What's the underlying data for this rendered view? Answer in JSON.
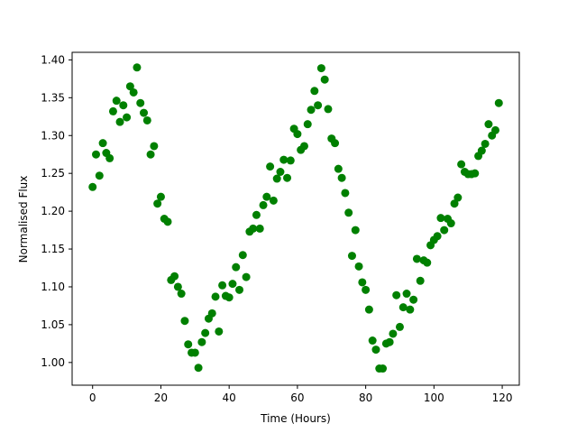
{
  "chart_data": {
    "type": "scatter",
    "title": "",
    "xlabel": "Time (Hours)",
    "ylabel": "Normalised Flux",
    "xlim": [
      -6,
      125
    ],
    "ylim": [
      0.97,
      1.41
    ],
    "xticks": [
      0,
      20,
      40,
      60,
      80,
      100,
      120
    ],
    "yticks": [
      1.0,
      1.05,
      1.1,
      1.15,
      1.2,
      1.25,
      1.3,
      1.35,
      1.4
    ],
    "xtick_labels": [
      "0",
      "20",
      "40",
      "60",
      "80",
      "100",
      "120"
    ],
    "ytick_labels": [
      "1.00",
      "1.05",
      "1.10",
      "1.15",
      "1.20",
      "1.25",
      "1.30",
      "1.35",
      "1.40"
    ],
    "grid": false,
    "marker_color": "#008000",
    "series": [
      {
        "x": [
          0,
          1,
          2,
          3,
          4,
          5,
          6,
          7,
          8,
          9,
          10,
          11,
          12,
          13,
          14,
          15,
          16,
          17,
          18,
          19,
          20,
          21,
          22,
          23,
          24,
          25,
          26,
          27,
          28,
          29,
          30,
          31,
          32,
          33,
          34,
          35,
          36,
          37,
          38,
          39,
          40,
          41,
          42,
          43,
          44,
          45,
          46,
          47,
          48,
          49,
          50,
          51,
          52,
          53,
          54,
          55,
          56,
          57,
          58,
          59,
          60,
          61,
          62,
          63,
          64,
          65,
          66,
          67,
          68,
          69,
          70,
          71,
          72,
          73,
          74,
          75,
          76,
          77,
          78,
          79,
          80,
          81,
          82,
          83,
          84,
          85,
          86,
          87,
          88,
          89,
          90,
          91,
          92,
          93,
          94,
          95,
          96,
          97,
          98,
          99,
          100,
          101,
          102,
          103,
          104,
          105,
          106,
          107,
          108,
          109,
          110,
          111,
          112,
          113,
          114,
          115,
          116,
          117,
          118,
          119
        ],
        "y": [
          1.232,
          1.275,
          1.247,
          1.29,
          1.277,
          1.27,
          1.332,
          1.346,
          1.318,
          1.34,
          1.324,
          1.365,
          1.357,
          1.39,
          1.343,
          1.33,
          1.32,
          1.275,
          1.286,
          1.21,
          1.219,
          1.19,
          1.186,
          1.109,
          1.114,
          1.1,
          1.091,
          1.055,
          1.024,
          1.013,
          1.013,
          0.993,
          1.027,
          1.039,
          1.058,
          1.065,
          1.087,
          1.041,
          1.102,
          1.088,
          1.086,
          1.104,
          1.126,
          1.096,
          1.142,
          1.113,
          1.173,
          1.177,
          1.195,
          1.177,
          1.208,
          1.219,
          1.259,
          1.214,
          1.243,
          1.252,
          1.268,
          1.244,
          1.267,
          1.309,
          1.302,
          1.281,
          1.286,
          1.315,
          1.334,
          1.359,
          1.34,
          1.389,
          1.374,
          1.335,
          1.296,
          1.29,
          1.256,
          1.244,
          1.224,
          1.198,
          1.141,
          1.175,
          1.127,
          1.106,
          1.096,
          1.07,
          1.029,
          1.017,
          0.992,
          0.992,
          1.025,
          1.027,
          1.038,
          1.089,
          1.047,
          1.073,
          1.091,
          1.07,
          1.083,
          1.137,
          1.108,
          1.135,
          1.132,
          1.155,
          1.162,
          1.167,
          1.191,
          1.175,
          1.19,
          1.184,
          1.21,
          1.218,
          1.262,
          1.252,
          1.249,
          1.249,
          1.25,
          1.273,
          1.28,
          1.289,
          1.315,
          1.3,
          1.307,
          1.343
        ]
      }
    ]
  }
}
